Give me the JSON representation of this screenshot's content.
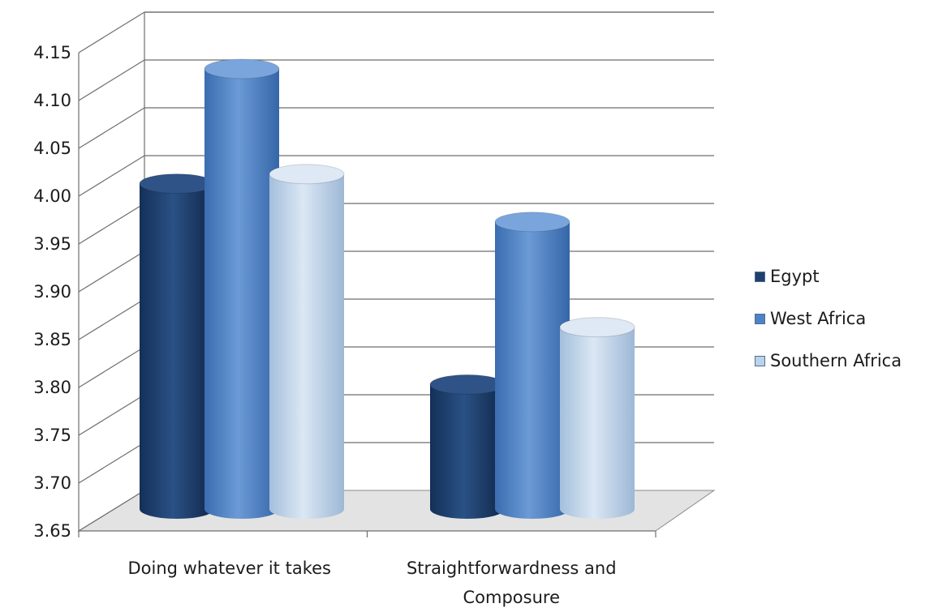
{
  "chart_data": {
    "type": "bar",
    "title": "",
    "xlabel": "",
    "ylabel": "",
    "categories": [
      "Doing whatever it takes",
      "Straightforwardness and Composure"
    ],
    "series": [
      {
        "name": "Egypt",
        "values": [
          4.03,
          3.82
        ],
        "color": "#1f3f6e"
      },
      {
        "name": "West Africa",
        "values": [
          4.15,
          3.99
        ],
        "color": "#4f83c8"
      },
      {
        "name": "Southern Africa",
        "values": [
          4.04,
          3.88
        ],
        "color": "#bcd2ea"
      }
    ],
    "ylim": [
      3.65,
      4.15
    ],
    "yticks": [
      "3.65",
      "3.70",
      "3.75",
      "3.80",
      "3.85",
      "3.90",
      "3.95",
      "4.00",
      "4.05",
      "4.10",
      "4.15"
    ],
    "grid": true,
    "legend_position": "right",
    "style": "3d-cylinder"
  }
}
